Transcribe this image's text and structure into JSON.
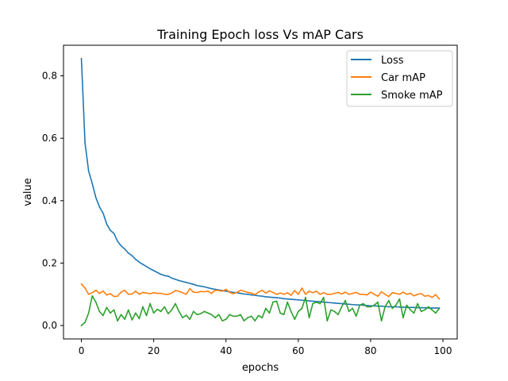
{
  "chart_data": {
    "type": "line",
    "title": "Training Epoch loss Vs mAP Cars",
    "xlabel": "epochs",
    "ylabel": "value",
    "xlim": [
      -4.95,
      103.95
    ],
    "ylim": [
      -0.043,
      0.898
    ],
    "xticks": [
      0,
      20,
      40,
      60,
      80,
      100
    ],
    "yticks": [
      0.0,
      0.2,
      0.4,
      0.6,
      0.8
    ],
    "xtick_labels": [
      "0",
      "20",
      "40",
      "60",
      "80",
      "100"
    ],
    "ytick_labels": [
      "0.0",
      "0.2",
      "0.4",
      "0.6",
      "0.8"
    ],
    "grid": false,
    "legend_position": "top-right",
    "x": [
      0,
      1,
      2,
      3,
      4,
      5,
      6,
      7,
      8,
      9,
      10,
      11,
      12,
      13,
      14,
      15,
      16,
      17,
      18,
      19,
      20,
      21,
      22,
      23,
      24,
      25,
      26,
      27,
      28,
      29,
      30,
      31,
      32,
      33,
      34,
      35,
      36,
      37,
      38,
      39,
      40,
      41,
      42,
      43,
      44,
      45,
      46,
      47,
      48,
      49,
      50,
      51,
      52,
      53,
      54,
      55,
      56,
      57,
      58,
      59,
      60,
      61,
      62,
      63,
      64,
      65,
      66,
      67,
      68,
      69,
      70,
      71,
      72,
      73,
      74,
      75,
      76,
      77,
      78,
      79,
      80,
      81,
      82,
      83,
      84,
      85,
      86,
      87,
      88,
      89,
      90,
      91,
      92,
      93,
      94,
      95,
      96,
      97,
      98,
      99
    ],
    "series": [
      {
        "name": "Loss",
        "color": "#1f77b4",
        "values": [
          0.855,
          0.585,
          0.495,
          0.455,
          0.41,
          0.38,
          0.36,
          0.325,
          0.305,
          0.295,
          0.27,
          0.255,
          0.245,
          0.232,
          0.224,
          0.212,
          0.203,
          0.196,
          0.189,
          0.182,
          0.176,
          0.17,
          0.164,
          0.16,
          0.158,
          0.152,
          0.148,
          0.144,
          0.141,
          0.138,
          0.135,
          0.132,
          0.128,
          0.126,
          0.124,
          0.121,
          0.118,
          0.116,
          0.114,
          0.112,
          0.11,
          0.108,
          0.106,
          0.105,
          0.103,
          0.101,
          0.1,
          0.098,
          0.097,
          0.095,
          0.094,
          0.092,
          0.091,
          0.09,
          0.089,
          0.088,
          0.086,
          0.085,
          0.084,
          0.083,
          0.082,
          0.081,
          0.08,
          0.079,
          0.078,
          0.077,
          0.076,
          0.075,
          0.074,
          0.073,
          0.072,
          0.071,
          0.07,
          0.069,
          0.068,
          0.067,
          0.066,
          0.066,
          0.065,
          0.064,
          0.063,
          0.063,
          0.062,
          0.062,
          0.061,
          0.06,
          0.06,
          0.06,
          0.059,
          0.059,
          0.058,
          0.058,
          0.058,
          0.057,
          0.057,
          0.057,
          0.056,
          0.056,
          0.056,
          0.056
        ]
      },
      {
        "name": "Car mAP",
        "color": "#ff7f0e",
        "values": [
          0.133,
          0.12,
          0.1,
          0.105,
          0.113,
          0.103,
          0.11,
          0.098,
          0.102,
          0.093,
          0.094,
          0.107,
          0.113,
          0.1,
          0.101,
          0.11,
          0.1,
          0.106,
          0.104,
          0.102,
          0.105,
          0.103,
          0.103,
          0.1,
          0.1,
          0.104,
          0.112,
          0.11,
          0.105,
          0.1,
          0.118,
          0.107,
          0.106,
          0.109,
          0.108,
          0.11,
          0.103,
          0.113,
          0.112,
          0.11,
          0.116,
          0.106,
          0.102,
          0.106,
          0.113,
          0.11,
          0.106,
          0.104,
          0.099,
          0.107,
          0.113,
          0.104,
          0.111,
          0.106,
          0.1,
          0.104,
          0.1,
          0.105,
          0.097,
          0.112,
          0.1,
          0.12,
          0.1,
          0.11,
          0.105,
          0.11,
          0.1,
          0.105,
          0.1,
          0.1,
          0.103,
          0.106,
          0.101,
          0.107,
          0.1,
          0.103,
          0.106,
          0.1,
          0.1,
          0.098,
          0.107,
          0.1,
          0.094,
          0.108,
          0.1,
          0.093,
          0.105,
          0.103,
          0.1,
          0.107,
          0.1,
          0.103,
          0.095,
          0.1,
          0.102,
          0.094,
          0.096,
          0.09,
          0.099,
          0.085
        ]
      },
      {
        "name": "Smoke mAP",
        "color": "#2ca02c",
        "values": [
          0.0,
          0.01,
          0.04,
          0.095,
          0.075,
          0.045,
          0.032,
          0.058,
          0.04,
          0.05,
          0.015,
          0.035,
          0.02,
          0.05,
          0.018,
          0.04,
          0.022,
          0.06,
          0.032,
          0.07,
          0.04,
          0.052,
          0.045,
          0.06,
          0.038,
          0.05,
          0.07,
          0.045,
          0.025,
          0.033,
          0.02,
          0.045,
          0.035,
          0.038,
          0.045,
          0.04,
          0.035,
          0.025,
          0.035,
          0.015,
          0.02,
          0.035,
          0.03,
          0.03,
          0.035,
          0.015,
          0.025,
          0.03,
          0.015,
          0.032,
          0.025,
          0.055,
          0.04,
          0.075,
          0.078,
          0.04,
          0.035,
          0.075,
          0.045,
          0.02,
          0.045,
          0.055,
          0.09,
          0.025,
          0.07,
          0.075,
          0.07,
          0.09,
          0.015,
          0.05,
          0.045,
          0.035,
          0.06,
          0.08,
          0.045,
          0.055,
          0.03,
          0.065,
          0.07,
          0.06,
          0.06,
          0.065,
          0.075,
          0.015,
          0.06,
          0.08,
          0.055,
          0.065,
          0.085,
          0.025,
          0.065,
          0.05,
          0.04,
          0.07,
          0.045,
          0.05,
          0.06,
          0.05,
          0.04,
          0.055
        ]
      }
    ]
  }
}
